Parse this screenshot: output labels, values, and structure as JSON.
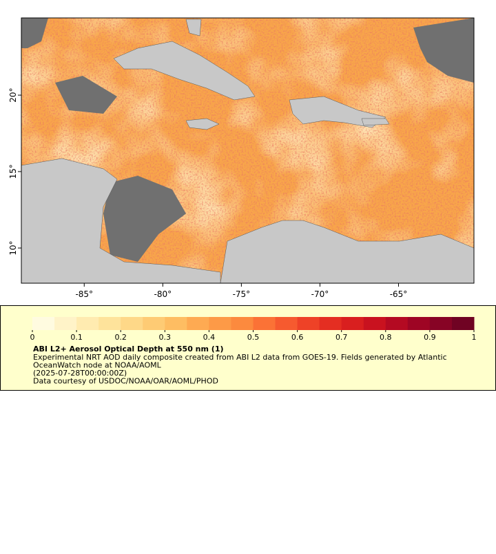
{
  "map": {
    "xlim": [
      -89,
      -60.2
    ],
    "ylim": [
      7.7,
      25.05
    ],
    "xticks": [
      {
        "value": -85,
        "label": "-85°"
      },
      {
        "value": -80,
        "label": "-80°"
      },
      {
        "value": -75,
        "label": "-75°"
      },
      {
        "value": -70,
        "label": "-70°"
      },
      {
        "value": -65,
        "label": "-65°"
      }
    ],
    "yticks": [
      {
        "value": 10,
        "label": "10°"
      },
      {
        "value": 15,
        "label": "15°"
      },
      {
        "value": 20,
        "label": "20°"
      }
    ]
  },
  "colorbar": {
    "lim": [
      0,
      1
    ],
    "ticks": [
      0,
      0.1,
      0.2,
      0.3,
      0.4,
      0.5,
      0.6,
      0.7,
      0.8,
      0.9,
      1
    ],
    "colors": [
      "#fffbe0",
      "#fff3c8",
      "#ffebb0",
      "#fee39b",
      "#fed888",
      "#fecb74",
      "#febd62",
      "#feaa52",
      "#fd9a47",
      "#fc8a3e",
      "#fb7236",
      "#f65a2f",
      "#ee4227",
      "#e42e22",
      "#d91f1f",
      "#c9121f",
      "#b40a22",
      "#9e0524",
      "#870425",
      "#700323"
    ]
  },
  "legend": {
    "title": "ABI L2+ Aerosol Optical Depth at 550 nm (1)",
    "lines": [
      "Experimental NRT AOD daily composite created from ABI L2 data from GOES-19. Fields generated by Atlantic",
      "OceanWatch node at NOAA/AOML",
      "(2025-07-28T00:00:00Z)",
      "Data courtesy of USDOC/NOAA/OAR/AOML/PHOD"
    ]
  }
}
